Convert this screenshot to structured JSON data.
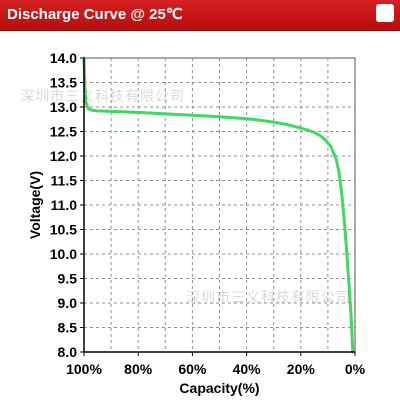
{
  "header": {
    "title": "Discharge Curve @ 25℃"
  },
  "watermarks": [
    "深圳市三义科技有限公司",
    "深圳市三义科技有限公司"
  ],
  "colors": {
    "header_bg": "#c81414",
    "curve": "#40d860",
    "grid": "#8f8f8f",
    "axis": "#000000"
  },
  "chart_data": {
    "type": "line",
    "title": "Discharge Curve @ 25℃",
    "xlabel": "Capacity(%)",
    "ylabel": "Voltage(V)",
    "x_reversed": true,
    "xlim": [
      100,
      0
    ],
    "ylim": [
      8.0,
      14.0
    ],
    "x_ticks": [
      100,
      80,
      60,
      40,
      20,
      0
    ],
    "x_tick_labels": [
      "100%",
      "80%",
      "60%",
      "40%",
      "20%",
      "0%"
    ],
    "y_ticks": [
      8.0,
      8.5,
      9.0,
      9.5,
      10.0,
      10.5,
      11.0,
      11.5,
      12.0,
      12.5,
      13.0,
      13.5,
      14.0
    ],
    "y_tick_labels": [
      "8.0",
      "8.5",
      "9.0",
      "9.5",
      "10.0",
      "10.5",
      "11.0",
      "11.5",
      "12.0",
      "12.5",
      "13.0",
      "13.5",
      "14.0"
    ],
    "grid": true,
    "series": [
      {
        "x": [
          100,
          99.7,
          99.3,
          98.5,
          97,
          95,
          90,
          80,
          70,
          60,
          50,
          40,
          35,
          30,
          25,
          20,
          17,
          15,
          13,
          11,
          9,
          7,
          6,
          5,
          4,
          3,
          2.5,
          2,
          1.5,
          1.2,
          0.8
        ],
        "y": [
          14.0,
          13.4,
          13.1,
          12.97,
          12.93,
          12.92,
          12.91,
          12.89,
          12.86,
          12.83,
          12.8,
          12.76,
          12.73,
          12.69,
          12.64,
          12.57,
          12.52,
          12.48,
          12.42,
          12.33,
          12.2,
          11.95,
          11.7,
          11.3,
          10.7,
          10.0,
          9.6,
          9.2,
          8.8,
          8.5,
          8.0
        ]
      }
    ]
  }
}
